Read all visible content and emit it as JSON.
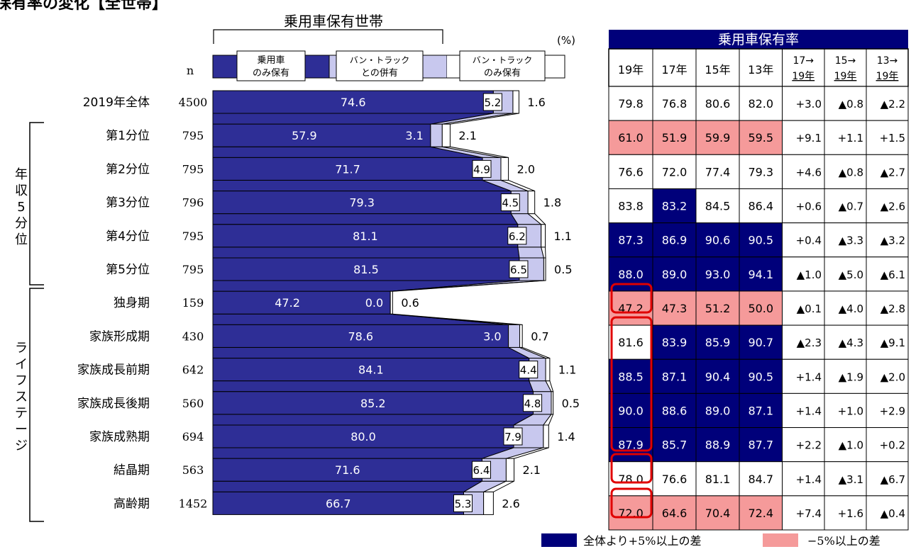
{
  "page_title": "保有率の変化【全世帯】",
  "chart_title": "乗用車保有世帯",
  "percent_unit": "(%)",
  "n_label": "n",
  "group_labels": [
    "年収5分位",
    "ライフステージ"
  ],
  "table_title": "乗用車保有率",
  "table_cols": [
    "19年",
    "17年",
    "15年",
    "13年"
  ],
  "diff_cols": [
    [
      "17→",
      "19年"
    ],
    [
      "15→",
      "19年"
    ],
    [
      "13→",
      "19年"
    ]
  ],
  "legend": {
    "above": "全体より+5%以上の差",
    "below": "−5%以上の差"
  },
  "colors": {
    "car_only": "#2e2e96",
    "both": "#c8c8ee",
    "above": "#00007a",
    "below": "#f59a9a",
    "circle": "#e00000"
  },
  "chart_data": {
    "type": "bar",
    "orientation": "horizontal",
    "stacked": true,
    "title": "乗用車保有世帯",
    "unit": "%",
    "categories": [
      "2019年全体",
      "第1分位",
      "第2分位",
      "第3分位",
      "第4分位",
      "第5分位",
      "独身期",
      "家族形成期",
      "家族成長前期",
      "家族成長後期",
      "家族成熟期",
      "結晶期",
      "高齢期"
    ],
    "n": [
      4500,
      795,
      795,
      796,
      795,
      795,
      159,
      430,
      642,
      560,
      694,
      563,
      1452
    ],
    "series": [
      {
        "name": "乗用車のみ保有",
        "values": [
          74.6,
          57.9,
          71.7,
          79.3,
          81.1,
          81.5,
          47.2,
          78.6,
          84.1,
          85.2,
          80.0,
          71.6,
          66.7
        ]
      },
      {
        "name": "バン・トラックとの併有",
        "values": [
          5.2,
          3.1,
          4.9,
          4.5,
          6.2,
          6.5,
          0.0,
          3.0,
          4.4,
          4.8,
          7.9,
          6.4,
          5.3
        ]
      },
      {
        "name": "バン・トラックのみ保有",
        "values": [
          1.6,
          2.1,
          2.0,
          1.8,
          1.1,
          0.5,
          0.6,
          0.7,
          1.1,
          0.5,
          1.4,
          2.1,
          2.6
        ]
      }
    ],
    "table": {
      "rates": [
        [
          "79.8",
          "76.8",
          "80.6",
          "82.0"
        ],
        [
          "61.0",
          "51.9",
          "59.9",
          "59.5"
        ],
        [
          "76.6",
          "72.0",
          "77.4",
          "79.3"
        ],
        [
          "83.8",
          "83.2",
          "84.5",
          "86.4"
        ],
        [
          "87.3",
          "86.9",
          "90.6",
          "90.5"
        ],
        [
          "88.0",
          "89.0",
          "93.0",
          "94.1"
        ],
        [
          "47.2",
          "47.3",
          "51.2",
          "50.0"
        ],
        [
          "81.6",
          "83.9",
          "85.9",
          "90.7"
        ],
        [
          "88.5",
          "87.1",
          "90.4",
          "90.5"
        ],
        [
          "90.0",
          "88.6",
          "89.0",
          "87.1"
        ],
        [
          "87.9",
          "85.7",
          "88.9",
          "87.7"
        ],
        [
          "78.0",
          "76.6",
          "81.1",
          "84.7"
        ],
        [
          "72.0",
          "64.6",
          "70.4",
          "72.4"
        ]
      ],
      "highlight": [
        [
          "",
          "",
          "",
          ""
        ],
        [
          "below",
          "below",
          "below",
          "below"
        ],
        [
          "",
          "",
          "",
          ""
        ],
        [
          "",
          "above",
          "",
          ""
        ],
        [
          "above",
          "above",
          "above",
          "above"
        ],
        [
          "above",
          "above",
          "above",
          "above"
        ],
        [
          "below",
          "below",
          "below",
          "below"
        ],
        [
          "",
          "above",
          "above",
          "above"
        ],
        [
          "above",
          "above",
          "above",
          "above"
        ],
        [
          "above",
          "above",
          "above",
          "above"
        ],
        [
          "above",
          "above",
          "above",
          "above"
        ],
        [
          "",
          "",
          "",
          ""
        ],
        [
          "below",
          "below",
          "below",
          "below"
        ]
      ],
      "diffs": [
        [
          "+3.0",
          "▲0.8",
          "▲2.2"
        ],
        [
          "+9.1",
          "+1.1",
          "+1.5"
        ],
        [
          "+4.6",
          "▲0.8",
          "▲2.7"
        ],
        [
          "+0.6",
          "▲0.7",
          "▲2.6"
        ],
        [
          "+0.4",
          "▲3.3",
          "▲3.2"
        ],
        [
          "▲1.0",
          "▲5.0",
          "▲6.1"
        ],
        [
          "▲0.1",
          "▲4.0",
          "▲2.8"
        ],
        [
          "▲2.3",
          "▲4.3",
          "▲9.1"
        ],
        [
          "+1.4",
          "▲1.9",
          "▲2.0"
        ],
        [
          "+1.4",
          "+1.0",
          "+2.9"
        ],
        [
          "+2.2",
          "▲1.0",
          "+0.2"
        ],
        [
          "+1.4",
          "▲3.1",
          "▲6.7"
        ],
        [
          "+7.4",
          "+1.6",
          "▲0.4"
        ]
      ]
    }
  }
}
